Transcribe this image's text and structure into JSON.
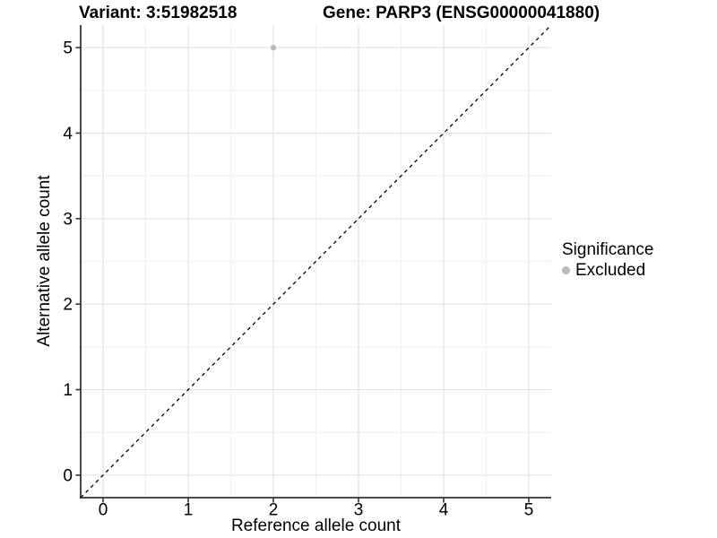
{
  "header": {
    "variant_title": "Variant: 3:51982518",
    "gene_title": "Gene: PARP3 (ENSG00000041880)"
  },
  "legend": {
    "title": "Significance",
    "items": [
      {
        "label": "Excluded",
        "marker_color": "#b9b9b9"
      }
    ]
  },
  "chart_data": {
    "type": "scatter",
    "title": "Variant: 3:51982518   Gene: PARP3 (ENSG00000041880)",
    "xlabel": "Reference allele count",
    "ylabel": "Alternative allele count",
    "xlim": [
      -0.263,
      5.263
    ],
    "ylim": [
      -0.263,
      5.263
    ],
    "x_ticks": [
      0,
      1,
      2,
      3,
      4,
      5
    ],
    "y_ticks": [
      0,
      1,
      2,
      3,
      4,
      5
    ],
    "grid": {
      "major": true,
      "minor": true,
      "minor_step": 0.5,
      "major_color": "#e2e2e2",
      "minor_color": "#f0f0f0"
    },
    "axis_color": "#333333",
    "tick_label_color": "#000000",
    "background_color": "#ffffff",
    "series": [
      {
        "name": "Excluded",
        "color": "#b9b9b9",
        "points": [
          {
            "x": 2,
            "y": 5
          }
        ]
      }
    ],
    "reference_line": {
      "style": "dashed",
      "slope": 1,
      "intercept": 0,
      "color": "#000000"
    },
    "legend_position": "right"
  }
}
